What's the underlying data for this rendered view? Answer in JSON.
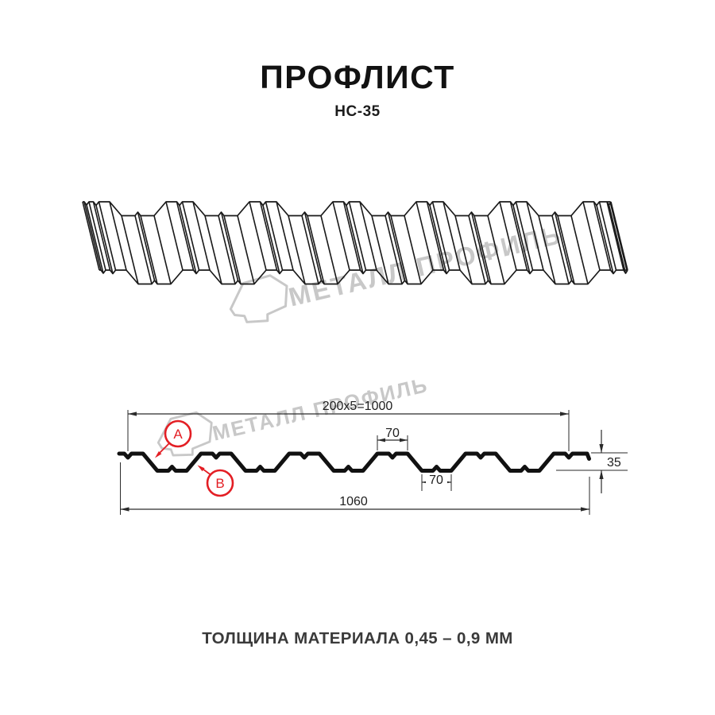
{
  "header": {
    "title": "ПРОФЛИСТ",
    "subtitle": "НС-35"
  },
  "watermark": {
    "brand": "МЕТАЛЛ ПРОФИЛЬ"
  },
  "cross_section": {
    "dim_module": "200x5=1000",
    "dim_crest_width": "70",
    "dim_valley_width": "70",
    "dim_height": "35",
    "dim_overall_width": "1060",
    "label_a": "A",
    "label_b": "B"
  },
  "footer": {
    "text": "ТОЛЩИНА МАТЕРИАЛА 0,45 – 0,9 ММ"
  },
  "colors": {
    "line": "#1a1a1a",
    "profile": "#111111",
    "dimension": "#2a2a2a",
    "accent_red": "#e31e24",
    "watermark_gray": "#c8c8c8"
  }
}
